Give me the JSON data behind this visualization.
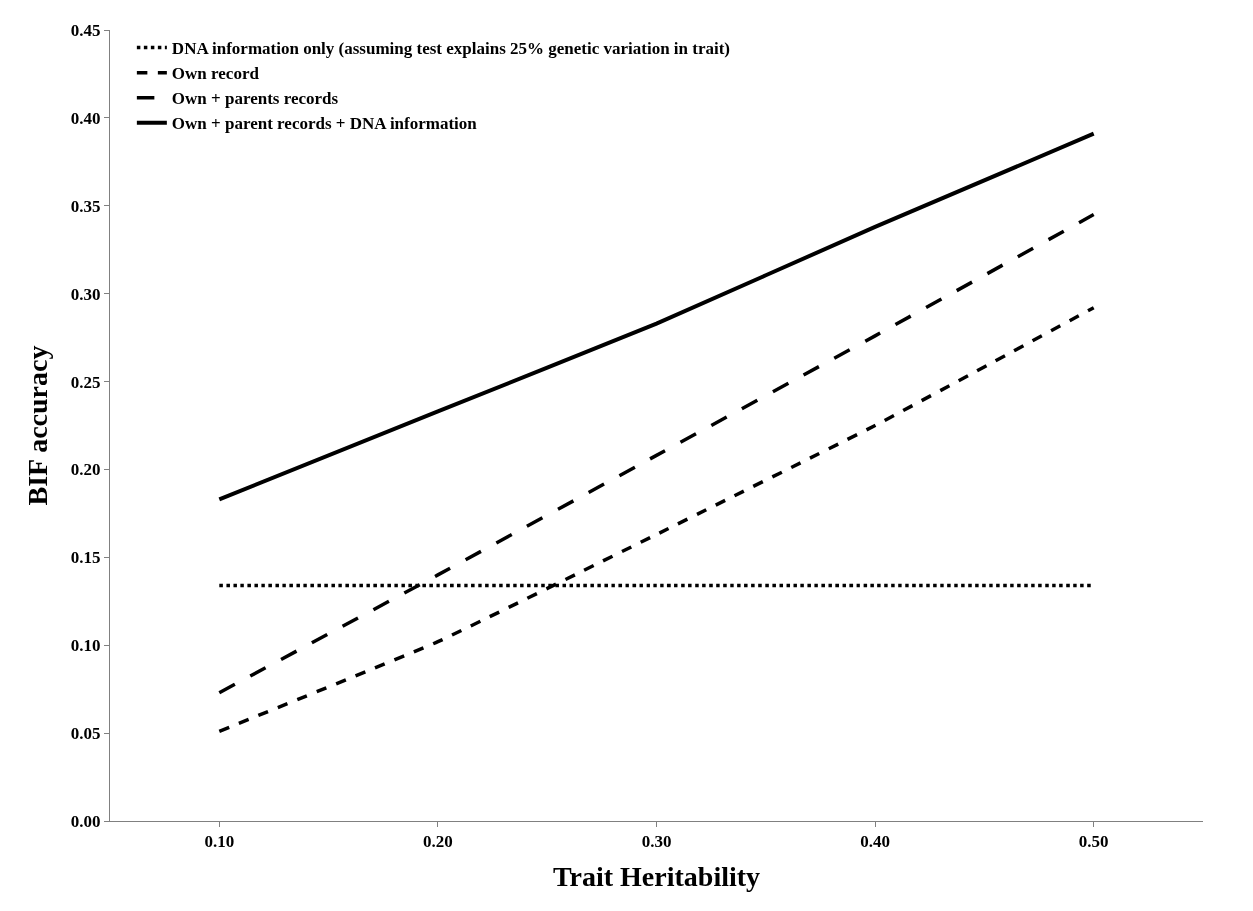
{
  "chart_data": {
    "type": "line",
    "xlabel": "Trait Heritability",
    "ylabel": "BIF accuracy",
    "categories": [
      "0.10",
      "0.20",
      "0.30",
      "0.40",
      "0.50"
    ],
    "ylim": [
      0,
      0.45
    ],
    "yticks": [
      {
        "value": 0,
        "label": "0.00"
      },
      {
        "value": 0.05,
        "label": "0.05"
      },
      {
        "value": 0.1,
        "label": "0.10"
      },
      {
        "value": 0.15,
        "label": "0.15"
      },
      {
        "value": 0.2,
        "label": "0.20"
      },
      {
        "value": 0.25,
        "label": "0.25"
      },
      {
        "value": 0.3,
        "label": "0.30"
      },
      {
        "value": 0.35,
        "label": "0.35"
      },
      {
        "value": 0.4,
        "label": "0.40"
      },
      {
        "value": 0.45,
        "label": "0.45"
      }
    ],
    "legend": "top left",
    "marker": "none",
    "series": [
      {
        "name": "DNA information only (assuming test explains 25% genetic variation in trait)",
        "color": "#000000",
        "line_style": "dotted",
        "values": [
          0.134,
          0.134,
          0.134,
          0.134,
          0.134
        ]
      },
      {
        "name": "Own record",
        "color": "#000000",
        "line_style": "dashed",
        "values": [
          0.051,
          0.102,
          0.163,
          0.225,
          0.292
        ]
      },
      {
        "name": "Own + parents records",
        "color": "#000000",
        "line_style": "long dashed",
        "values": [
          0.073,
          0.14,
          0.208,
          0.276,
          0.345
        ]
      },
      {
        "name": "Own + parent records + DNA information",
        "color": "#000000",
        "line_style": "solid",
        "values": [
          0.183,
          0.233,
          0.283,
          0.338,
          0.391
        ]
      }
    ]
  }
}
